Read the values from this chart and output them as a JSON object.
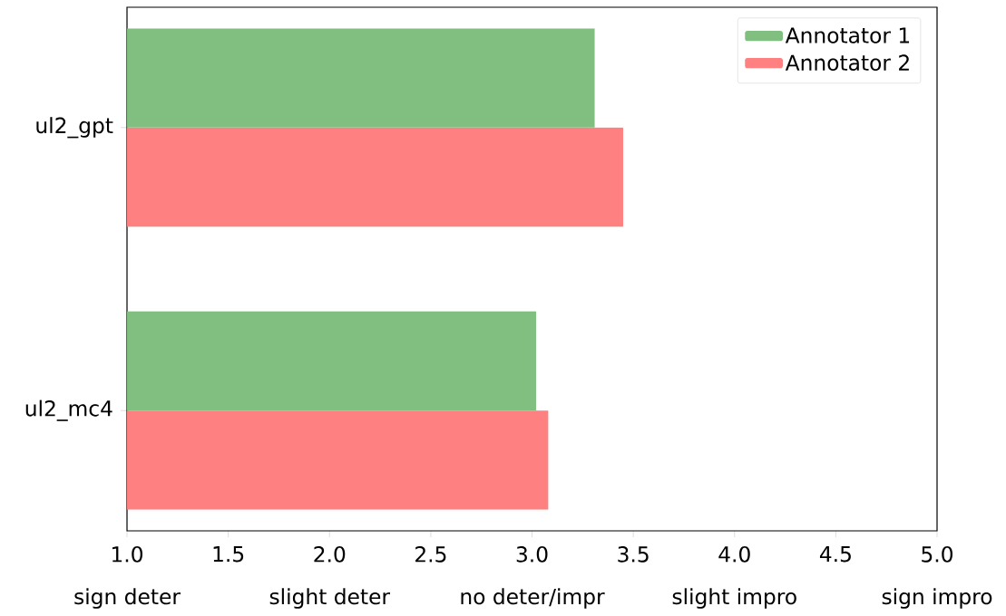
{
  "chart_data": {
    "type": "bar",
    "orientation": "horizontal",
    "categories": [
      "ul2_gpt",
      "ul2_mc4"
    ],
    "series": [
      {
        "name": "Annotator 1",
        "color": "#80bf80",
        "values": [
          3.31,
          3.02
        ]
      },
      {
        "name": "Annotator 2",
        "color": "#ff8080",
        "values": [
          3.45,
          3.08
        ]
      }
    ],
    "xlim": [
      1,
      5
    ],
    "xticks": [
      {
        "value": 1,
        "label": "1.0"
      },
      {
        "value": 1.5,
        "label": "1.5"
      },
      {
        "value": 2,
        "label": "2.0"
      },
      {
        "value": 2.5,
        "label": "2.5"
      },
      {
        "value": 3,
        "label": "3.0"
      },
      {
        "value": 3.5,
        "label": "3.5"
      },
      {
        "value": 4,
        "label": "4.0"
      },
      {
        "value": 4.5,
        "label": "4.5"
      },
      {
        "value": 5,
        "label": "5.0"
      }
    ],
    "annotations": [
      "sign deter",
      "slight deter",
      "no deter/impr",
      "slight impro",
      "sign impro"
    ],
    "legend": "top right",
    "grid": false
  }
}
